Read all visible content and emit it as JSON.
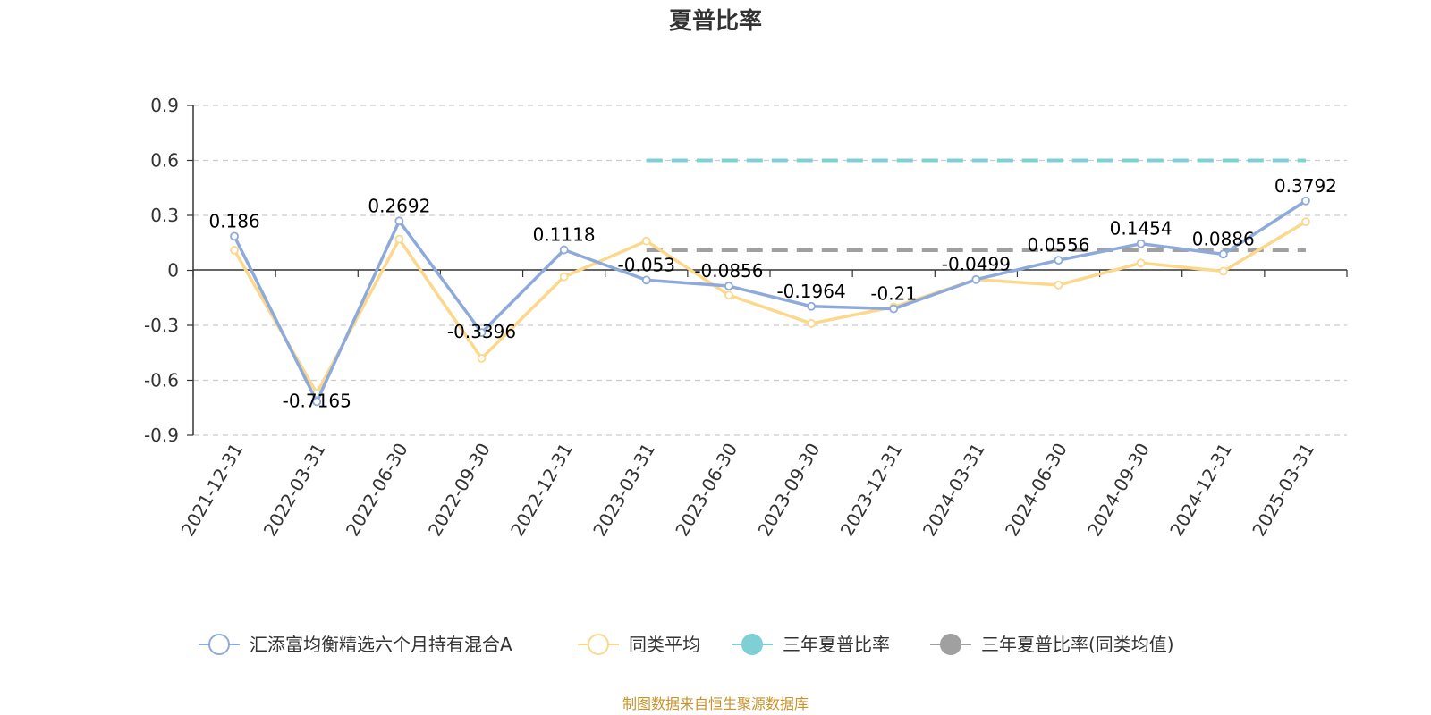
{
  "chart_data": {
    "type": "line",
    "title": "夏普比率",
    "categories": [
      "2021-12-31",
      "2022-03-31",
      "2022-06-30",
      "2022-09-30",
      "2022-12-31",
      "2023-03-31",
      "2023-06-30",
      "2023-09-30",
      "2023-12-31",
      "2024-03-31",
      "2024-06-30",
      "2024-09-30",
      "2024-12-31",
      "2025-03-31"
    ],
    "yticks": [
      "0.9",
      "0.6",
      "0.3",
      "0",
      "-0.3",
      "-0.6",
      "-0.9"
    ],
    "ylim": [
      -0.9,
      0.9
    ],
    "grid": true,
    "legend_position": "bottom",
    "series": [
      {
        "name": "汇添富均衡精选六个月持有混合A",
        "color": "#8eaadb",
        "marker": "hollow-circle",
        "show_labels": true,
        "values": [
          0.186,
          -0.7165,
          0.2692,
          -0.3396,
          0.1118,
          -0.053,
          -0.0856,
          -0.1964,
          -0.21,
          -0.0499,
          0.0556,
          0.1454,
          0.0886,
          0.3792
        ],
        "labels": [
          "0.186",
          "-0.7165",
          "0.2692",
          "-0.3396",
          "0.1118",
          "-0.053",
          "-0.0856",
          "-0.1964",
          "-0.21",
          "-0.0499",
          "0.0556",
          "0.1454",
          "0.0886",
          "0.3792"
        ]
      },
      {
        "name": "同类平均",
        "color": "#fbd88c",
        "marker": "hollow-circle",
        "show_labels": false,
        "values": [
          0.11,
          -0.67,
          0.17,
          -0.48,
          -0.035,
          0.16,
          -0.135,
          -0.29,
          -0.2,
          -0.05,
          -0.08,
          0.04,
          -0.005,
          0.265
        ]
      },
      {
        "name": "三年夏普比率",
        "color": "#7ed0d4",
        "marker": "filled-circle",
        "style": "dashed",
        "x_range": [
          "2023-03-31",
          "2025-03-31"
        ],
        "value": 0.6
      },
      {
        "name": "三年夏普比率(同类均值)",
        "color": "#a0a0a0",
        "marker": "filled-circle",
        "style": "dashed",
        "x_range": [
          "2023-03-31",
          "2025-03-31"
        ],
        "value": 0.11
      }
    ],
    "source": "制图数据来自恒生聚源数据库"
  }
}
